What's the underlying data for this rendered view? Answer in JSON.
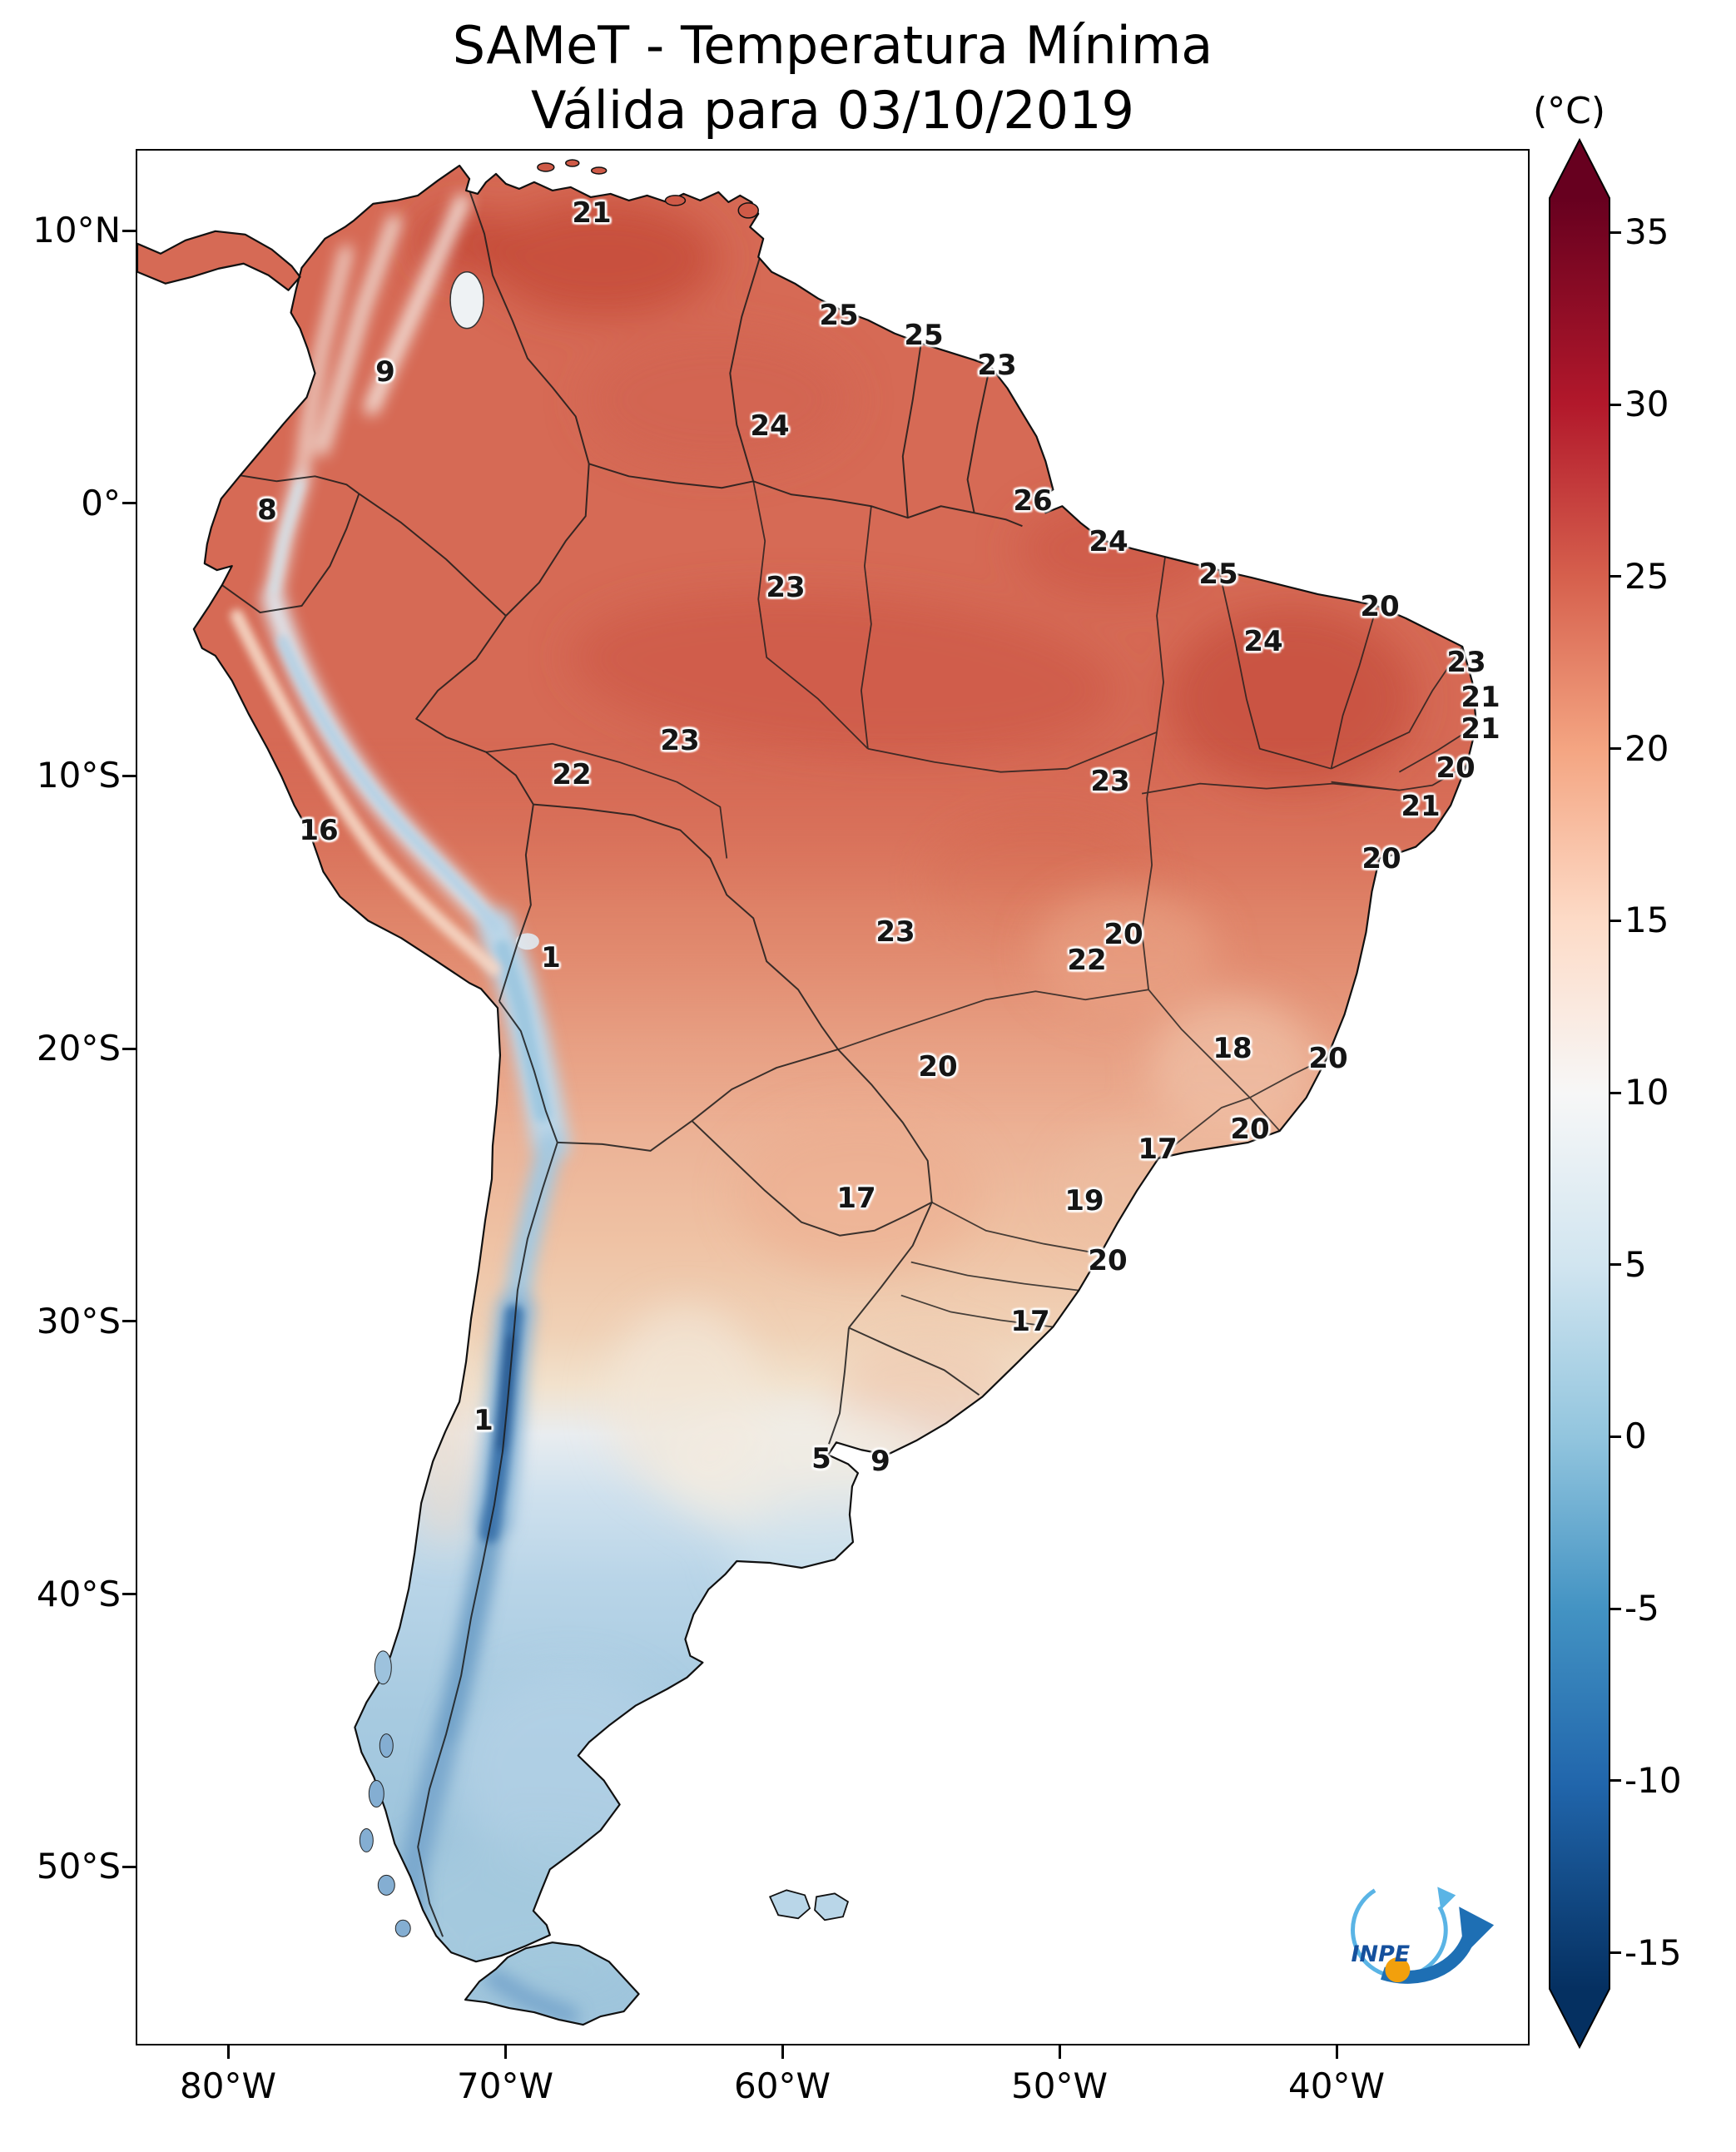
{
  "title": {
    "line1": "SAMeT - Temperatura Mínima",
    "line2": "Válida para 03/10/2019"
  },
  "colorbar": {
    "unit": "(°C)",
    "tick_values": [
      35,
      30,
      25,
      20,
      15,
      10,
      5,
      0,
      -5,
      -10,
      -15
    ]
  },
  "axes": {
    "y_ticks": [
      {
        "label": "10°N",
        "lat": 10
      },
      {
        "label": "0°",
        "lat": 0
      },
      {
        "label": "10°S",
        "lat": -10
      },
      {
        "label": "20°S",
        "lat": -20
      },
      {
        "label": "30°S",
        "lat": -30
      },
      {
        "label": "40°S",
        "lat": -40
      },
      {
        "label": "50°S",
        "lat": -50
      }
    ],
    "x_ticks": [
      {
        "label": "80°W",
        "lon": 80
      },
      {
        "label": "70°W",
        "lon": 70
      },
      {
        "label": "60°W",
        "lon": 60
      },
      {
        "label": "50°W",
        "lon": 50
      },
      {
        "label": "40°W",
        "lon": 40
      }
    ]
  },
  "logo": {
    "text": "INPE"
  },
  "chart_data": {
    "type": "heatmap",
    "title": "SAMeT - Temperatura Mínima",
    "valid_date": "03/10/2019",
    "region": "South America",
    "units": "°C",
    "value_range": [
      -15,
      35
    ],
    "colorbar_ticks": [
      35,
      30,
      25,
      20,
      15,
      10,
      5,
      0,
      -5,
      -10,
      -15
    ],
    "lat_ticks": [
      "10°N",
      "0°",
      "10°S",
      "20°S",
      "30°S",
      "40°S",
      "50°S"
    ],
    "lon_ticks": [
      "80°W",
      "70°W",
      "60°W",
      "50°W",
      "40°W"
    ],
    "temperature_labels": [
      {
        "value": 21,
        "x": 546,
        "y": 75
      },
      {
        "value": 25,
        "x": 843,
        "y": 198
      },
      {
        "value": 25,
        "x": 945,
        "y": 222
      },
      {
        "value": 23,
        "x": 1033,
        "y": 258
      },
      {
        "value": 9,
        "x": 298,
        "y": 266
      },
      {
        "value": 24,
        "x": 760,
        "y": 331
      },
      {
        "value": 8,
        "x": 156,
        "y": 432
      },
      {
        "value": 26,
        "x": 1076,
        "y": 421
      },
      {
        "value": 24,
        "x": 1167,
        "y": 470
      },
      {
        "value": 25,
        "x": 1299,
        "y": 509
      },
      {
        "value": 23,
        "x": 779,
        "y": 525
      },
      {
        "value": 20,
        "x": 1493,
        "y": 548
      },
      {
        "value": 24,
        "x": 1353,
        "y": 590
      },
      {
        "value": 23,
        "x": 1597,
        "y": 615
      },
      {
        "value": 21,
        "x": 1614,
        "y": 657
      },
      {
        "value": 21,
        "x": 1614,
        "y": 695
      },
      {
        "value": 23,
        "x": 652,
        "y": 709
      },
      {
        "value": 20,
        "x": 1584,
        "y": 742
      },
      {
        "value": 22,
        "x": 522,
        "y": 750
      },
      {
        "value": 23,
        "x": 1169,
        "y": 758
      },
      {
        "value": 21,
        "x": 1542,
        "y": 788
      },
      {
        "value": 16,
        "x": 218,
        "y": 817
      },
      {
        "value": 20,
        "x": 1495,
        "y": 851
      },
      {
        "value": 23,
        "x": 911,
        "y": 939
      },
      {
        "value": 20,
        "x": 1185,
        "y": 942
      },
      {
        "value": 22,
        "x": 1141,
        "y": 973
      },
      {
        "value": 1,
        "x": 497,
        "y": 970
      },
      {
        "value": 18,
        "x": 1316,
        "y": 1079
      },
      {
        "value": 20,
        "x": 962,
        "y": 1101
      },
      {
        "value": 20,
        "x": 1431,
        "y": 1091
      },
      {
        "value": 20,
        "x": 1337,
        "y": 1176
      },
      {
        "value": 17,
        "x": 1226,
        "y": 1200
      },
      {
        "value": 17,
        "x": 864,
        "y": 1259
      },
      {
        "value": 19,
        "x": 1138,
        "y": 1262
      },
      {
        "value": 20,
        "x": 1166,
        "y": 1334
      },
      {
        "value": 17,
        "x": 1073,
        "y": 1407
      },
      {
        "value": 1,
        "x": 416,
        "y": 1526
      },
      {
        "value": 5,
        "x": 822,
        "y": 1572
      },
      {
        "value": 9,
        "x": 893,
        "y": 1575
      }
    ]
  }
}
